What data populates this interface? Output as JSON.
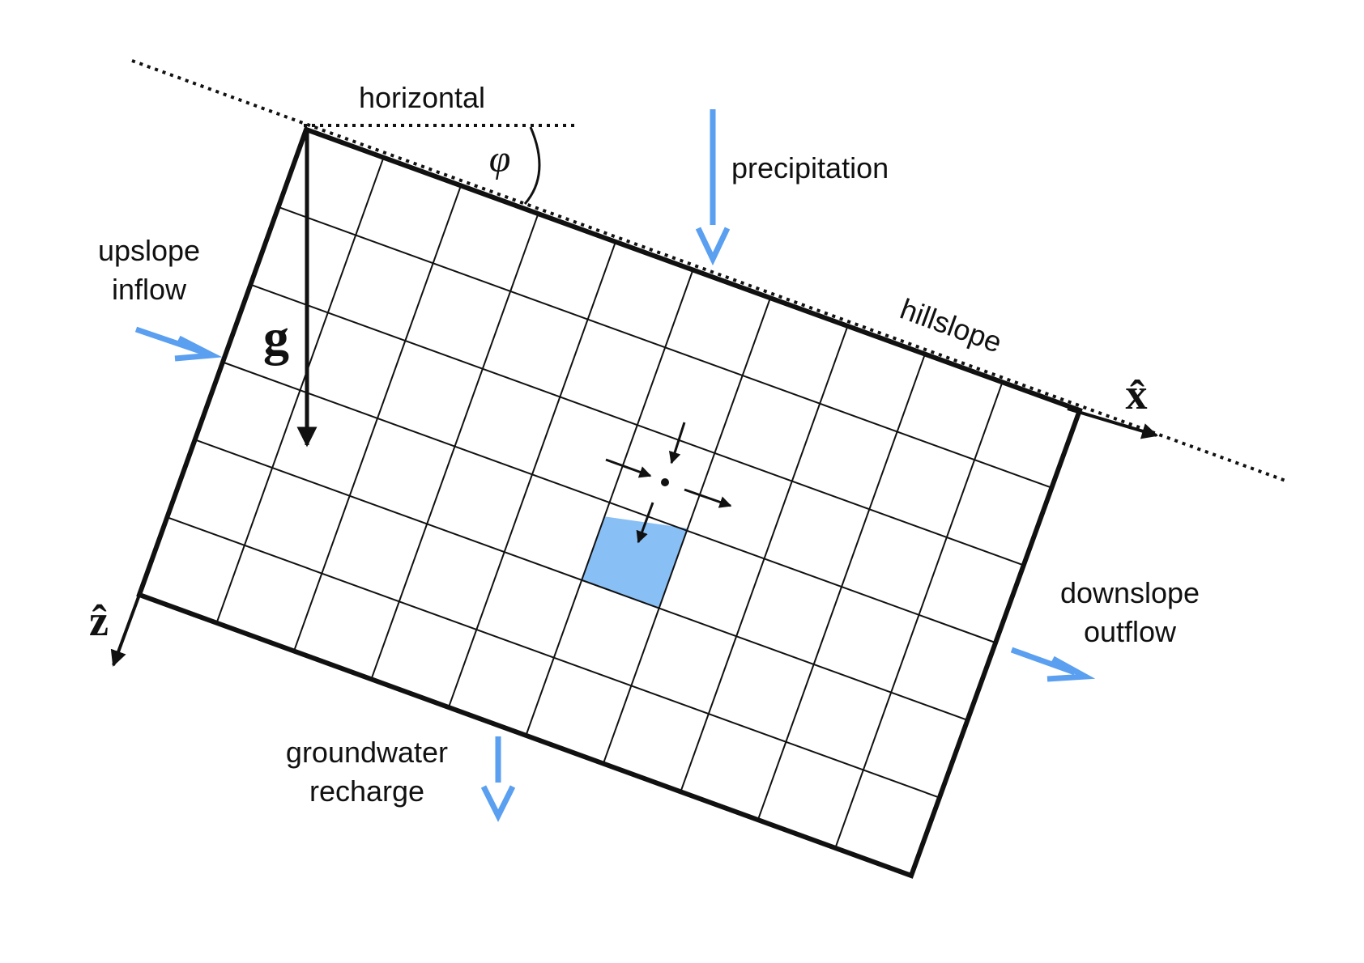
{
  "labels": {
    "horizontal": "horizontal",
    "precipitation": "precipitation",
    "upslope_line1": "upslope",
    "upslope_line2": "inflow",
    "hillslope": "hillslope",
    "downslope_line1": "downslope",
    "downslope_line2": "outflow",
    "recharge_line1": "groundwater",
    "recharge_line2": "recharge",
    "angle_symbol": "φ",
    "gravity_symbol": "g",
    "x_axis_symbol": "x̂",
    "z_axis_symbol": "ẑ"
  },
  "grid": {
    "columns": 10,
    "rows": 6,
    "highlighted_cell": {
      "column": 5,
      "row": 3
    }
  },
  "colors": {
    "flow_arrow": "#5a9ff0",
    "cell_fill": "#88bff5",
    "ink": "#111111"
  },
  "icons": [
    "flow-arrow-icon",
    "gravity-arrow-icon",
    "axis-arrow-icon"
  ]
}
